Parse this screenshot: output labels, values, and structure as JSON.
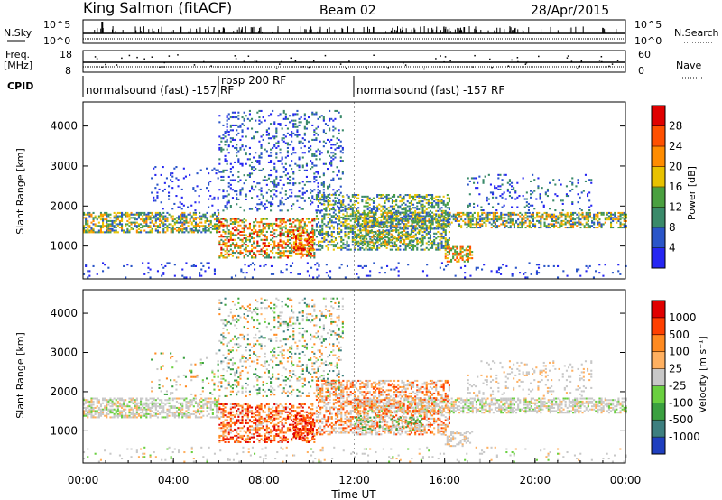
{
  "header": {
    "station": "King Salmon (fitACF)",
    "beam": "Beam 02",
    "date": "28/Apr/2015"
  },
  "param_strips": {
    "nsky_label": "N.Sky",
    "nsky_ticks": [
      "10^5",
      "10^0"
    ],
    "nsearch_label": "N.Search",
    "nsearch_ticks": [
      "10^5",
      "10^0"
    ],
    "freq_label": "Freq.",
    "freq_unit": "[MHz]",
    "freq_ticks": [
      "18",
      "8"
    ],
    "nave_label": "Nave",
    "nave_ticks": [
      "60",
      "0"
    ],
    "cpid_label": "CPID",
    "cpid_segments": [
      {
        "label": "normalsound (fast) -157 RF",
        "start_h": 0,
        "end_h": 6
      },
      {
        "label": "rbsp 200 RF",
        "start_h": 6,
        "end_h": 12
      },
      {
        "label": "normalsound (fast) -157 RF",
        "start_h": 12,
        "end_h": 24
      }
    ]
  },
  "power_colorbar": {
    "label": "Power [dB]",
    "ticks": [
      "4",
      "8",
      "12",
      "16",
      "20",
      "24",
      "28"
    ],
    "colors": [
      "#2626f2",
      "#2a55c8",
      "#3a8a6a",
      "#4aa040",
      "#e8c200",
      "#ff8c00",
      "#ff5000",
      "#e00000"
    ]
  },
  "velocity_colorbar": {
    "label": "Velocity [m s⁻¹]",
    "ticks": [
      "1000",
      "500",
      "100",
      "25",
      "-25",
      "-100",
      "-500",
      "-1000"
    ],
    "colors": [
      "#1f3fbf",
      "#3d7f7f",
      "#3aa040",
      "#6ad040",
      "#c8c8c8",
      "#ffb060",
      "#ff8a20",
      "#ff4000",
      "#e00000"
    ]
  },
  "chart_data": {
    "type": "heatmap",
    "panels": [
      {
        "name": "power",
        "ylabel": "Slant Range [km]",
        "yticks": [
          1000,
          2000,
          3000,
          4000
        ],
        "ylim": [
          180,
          4600
        ]
      },
      {
        "name": "velocity",
        "ylabel": "Slant Range [km]",
        "yticks": [
          1000,
          2000,
          3000,
          4000
        ],
        "ylim": [
          180,
          4600
        ]
      }
    ],
    "xlabel": "Time UT",
    "xticks": [
      "00:00",
      "04:00",
      "08:00",
      "12:00",
      "16:00",
      "20:00",
      "00:00"
    ],
    "xlim_hours": [
      0,
      24
    ]
  }
}
